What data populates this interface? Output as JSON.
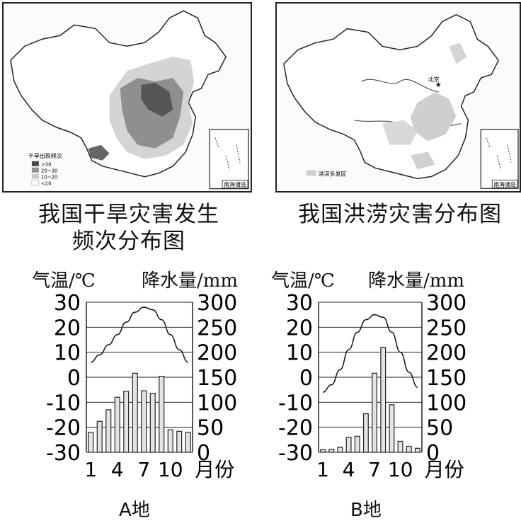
{
  "maps": [
    {
      "id": "drought",
      "caption_line1": "我国干旱灾害发生",
      "caption_line2": "频次分布图",
      "legend_title": "干旱出现频次",
      "legend_items": [
        ">30",
        "20~30",
        "10~20",
        "<10"
      ],
      "inset_label": "南海诸岛"
    },
    {
      "id": "flood",
      "caption": "我国洪涝灾害分布图",
      "city_label": "北京",
      "legend_items": [
        "洪涝多发区"
      ],
      "inset_label": "南海诸岛"
    }
  ],
  "charts_header": {
    "left": {
      "temp_title": "气温/℃",
      "precip_title": "降水量/mm"
    },
    "right": {
      "temp_title": "气温/℃",
      "precip_title": "降水量/mm"
    }
  },
  "chart_data": [
    {
      "type": "bar+line",
      "place": "A地",
      "x_tick_labels": [
        "1",
        "4",
        "7",
        "10"
      ],
      "x_unit_label": "月份",
      "temp_axis": {
        "ticks": [
          "30",
          "20",
          "10",
          "0",
          "-10",
          "-20",
          "-30"
        ],
        "ylim": [
          -30,
          30
        ]
      },
      "precip_axis": {
        "ticks": [
          "300",
          "250",
          "200",
          "150",
          "100",
          "50",
          "0"
        ],
        "ylim": [
          0,
          300
        ]
      },
      "months": [
        1,
        2,
        3,
        4,
        5,
        6,
        7,
        8,
        9,
        10,
        11,
        12
      ],
      "precipitation": [
        40,
        62,
        85,
        110,
        122,
        158,
        123,
        118,
        152,
        45,
        42,
        40
      ],
      "temperature": [
        6,
        9,
        13,
        17,
        22,
        26,
        28,
        27,
        23,
        17,
        11,
        6
      ]
    },
    {
      "type": "bar+line",
      "place": "B地",
      "x_tick_labels": [
        "1",
        "4",
        "7",
        "10"
      ],
      "x_unit_label": "月份",
      "temp_axis": {
        "ticks": [
          "30",
          "20",
          "10",
          "0",
          "-10",
          "-20",
          "-30"
        ],
        "ylim": [
          -30,
          30
        ]
      },
      "precip_axis": {
        "ticks": [
          "300",
          "250",
          "200",
          "150",
          "100",
          "50",
          "0"
        ],
        "ylim": [
          0,
          300
        ]
      },
      "months": [
        1,
        2,
        3,
        4,
        5,
        6,
        7,
        8,
        9,
        10,
        11,
        12
      ],
      "precipitation": [
        5,
        6,
        10,
        30,
        32,
        77,
        158,
        210,
        95,
        22,
        12,
        8
      ],
      "temperature": [
        -6,
        -3,
        3,
        11,
        18,
        23,
        25,
        24,
        18,
        10,
        2,
        -4
      ]
    }
  ]
}
